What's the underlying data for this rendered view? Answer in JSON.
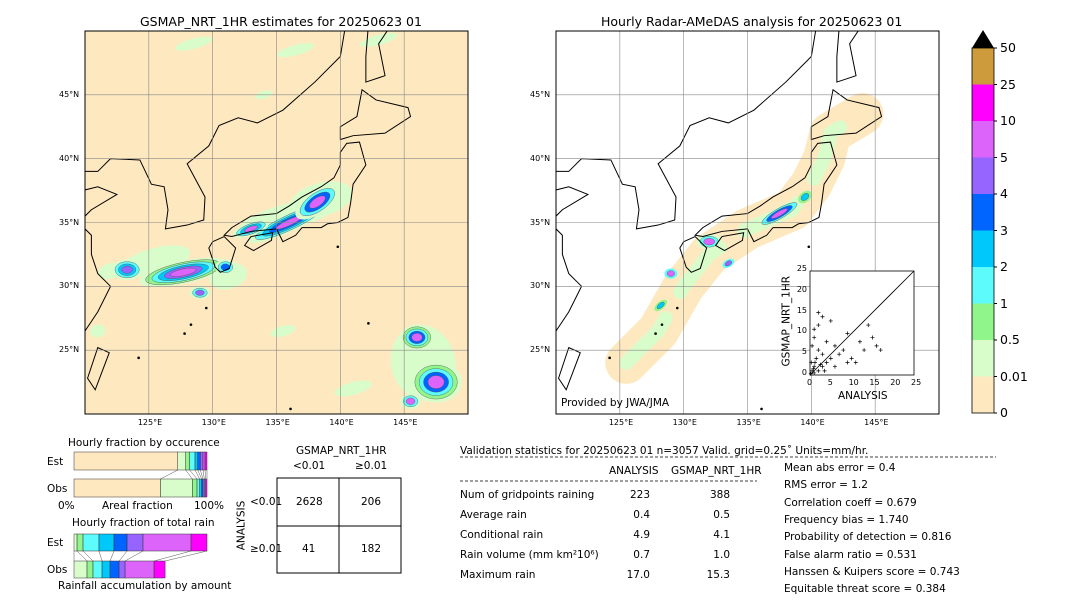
{
  "left_map": {
    "title": "GSMAP_NRT_1HR estimates for 20250623 01",
    "lon_range": [
      120,
      150
    ],
    "lat_range": [
      20,
      50
    ]
  },
  "right_map": {
    "title": "Hourly Radar-AMeDAS analysis for 20250623 01",
    "lon_range": [
      120,
      150
    ],
    "lat_range": [
      20,
      50
    ],
    "credit": "Provided by JWA/JMA"
  },
  "lon_ticks": [
    "125°E",
    "130°E",
    "135°E",
    "140°E",
    "145°E"
  ],
  "lat_ticks": [
    "45°N",
    "40°N",
    "35°N",
    "30°N",
    "25°N"
  ],
  "colorbar": {
    "levels": [
      "0",
      "0.01",
      "0.5",
      "1",
      "2",
      "3",
      "4",
      "5",
      "10",
      "25",
      "50"
    ],
    "colors": [
      "#fee8c0",
      "#d9fccb",
      "#90f58a",
      "#5dfbfb",
      "#00c8fa",
      "#0064ff",
      "#9664ff",
      "#dc64fa",
      "#ff00ff",
      "#cd9b3c"
    ],
    "extend_color": "#000000"
  },
  "scatter": {
    "xlabel": "ANALYSIS",
    "ylabel": "GSMAP_NRT_1HR",
    "ticks": [
      "0",
      "5",
      "10",
      "15",
      "20",
      "25"
    ],
    "range": [
      0,
      25
    ],
    "points": [
      [
        0.5,
        1
      ],
      [
        1,
        0.5
      ],
      [
        1,
        2
      ],
      [
        2,
        1
      ],
      [
        0.3,
        3
      ],
      [
        1.5,
        4
      ],
      [
        2,
        6
      ],
      [
        3,
        2
      ],
      [
        0.5,
        7
      ],
      [
        1,
        9
      ],
      [
        2,
        12
      ],
      [
        3,
        5
      ],
      [
        4,
        3
      ],
      [
        5,
        4
      ],
      [
        4,
        8
      ],
      [
        6,
        2
      ],
      [
        7,
        5
      ],
      [
        8,
        6
      ],
      [
        9,
        10
      ],
      [
        10,
        4
      ],
      [
        11,
        3
      ],
      [
        12,
        8
      ],
      [
        14,
        12
      ],
      [
        15,
        9
      ],
      [
        17,
        6
      ],
      [
        16,
        7
      ],
      [
        3,
        14
      ],
      [
        2,
        15
      ],
      [
        5,
        13
      ],
      [
        1,
        11
      ],
      [
        0.2,
        0.3
      ],
      [
        0.8,
        1.5
      ],
      [
        1.2,
        3
      ],
      [
        2.5,
        2.5
      ],
      [
        3.5,
        1
      ],
      [
        6,
        7
      ],
      [
        9,
        3
      ],
      [
        13,
        6
      ]
    ]
  },
  "occurrence": {
    "title": "Hourly fraction by occurence",
    "est_label": "Est",
    "obs_label": "Obs",
    "xlabel": "Areal fraction",
    "x0": "0%",
    "x1": "100%",
    "est": [
      0.78,
      0.06,
      0.03,
      0.04,
      0.02,
      0.02,
      0.02,
      0.015,
      0.015
    ],
    "obs": [
      0.65,
      0.24,
      0.035,
      0.02,
      0.015,
      0.01,
      0.01,
      0.01,
      0.01
    ]
  },
  "total_rain": {
    "title": "Hourly fraction of total rain",
    "est_label": "Est",
    "obs_label": "Obs",
    "xlabel": "Rainfall accumulation by amount",
    "est": [
      0,
      0.023,
      0.045,
      0.12,
      0.113,
      0.098,
      0.12,
      0.361,
      0.12
    ],
    "obs": [
      0,
      0.098,
      0.045,
      0.068,
      0.06,
      0.068,
      0.045,
      0.218,
      0.083
    ]
  },
  "contingency": {
    "title": "GSMAP_NRT_1HR",
    "col_labels": [
      "<0.01",
      "≥0.01"
    ],
    "row_title": "ANALYSIS",
    "row_labels": [
      "<0.01",
      "≥0.01"
    ],
    "cells": [
      [
        "2628",
        "206"
      ],
      [
        "41",
        "182"
      ]
    ]
  },
  "stats": {
    "header": "Validation statistics for 20250623 01  n=3057 Valid. grid=0.25˚ Units=mm/hr.",
    "col_headers": [
      "ANALYSIS",
      "GSMAP_NRT_1HR"
    ],
    "rows": [
      [
        "Num of gridpoints raining",
        "223",
        "388"
      ],
      [
        "Average rain",
        "0.4",
        "0.5"
      ],
      [
        "Conditional rain",
        "4.9",
        "4.1"
      ],
      [
        "Rain volume (mm km²10⁶)",
        "0.7",
        "1.0"
      ],
      [
        "Maximum rain",
        "17.0",
        "15.3"
      ]
    ],
    "scores": [
      "Mean abs error =    0.4",
      "RMS error =    1.2",
      "Correlation coeff =  0.679",
      "Frequency bias =  1.740",
      "Probability of detection =  0.816",
      "False alarm ratio =  0.531",
      "Hanssen & Kuipers score =  0.743",
      "Equitable threat score =  0.384"
    ]
  }
}
